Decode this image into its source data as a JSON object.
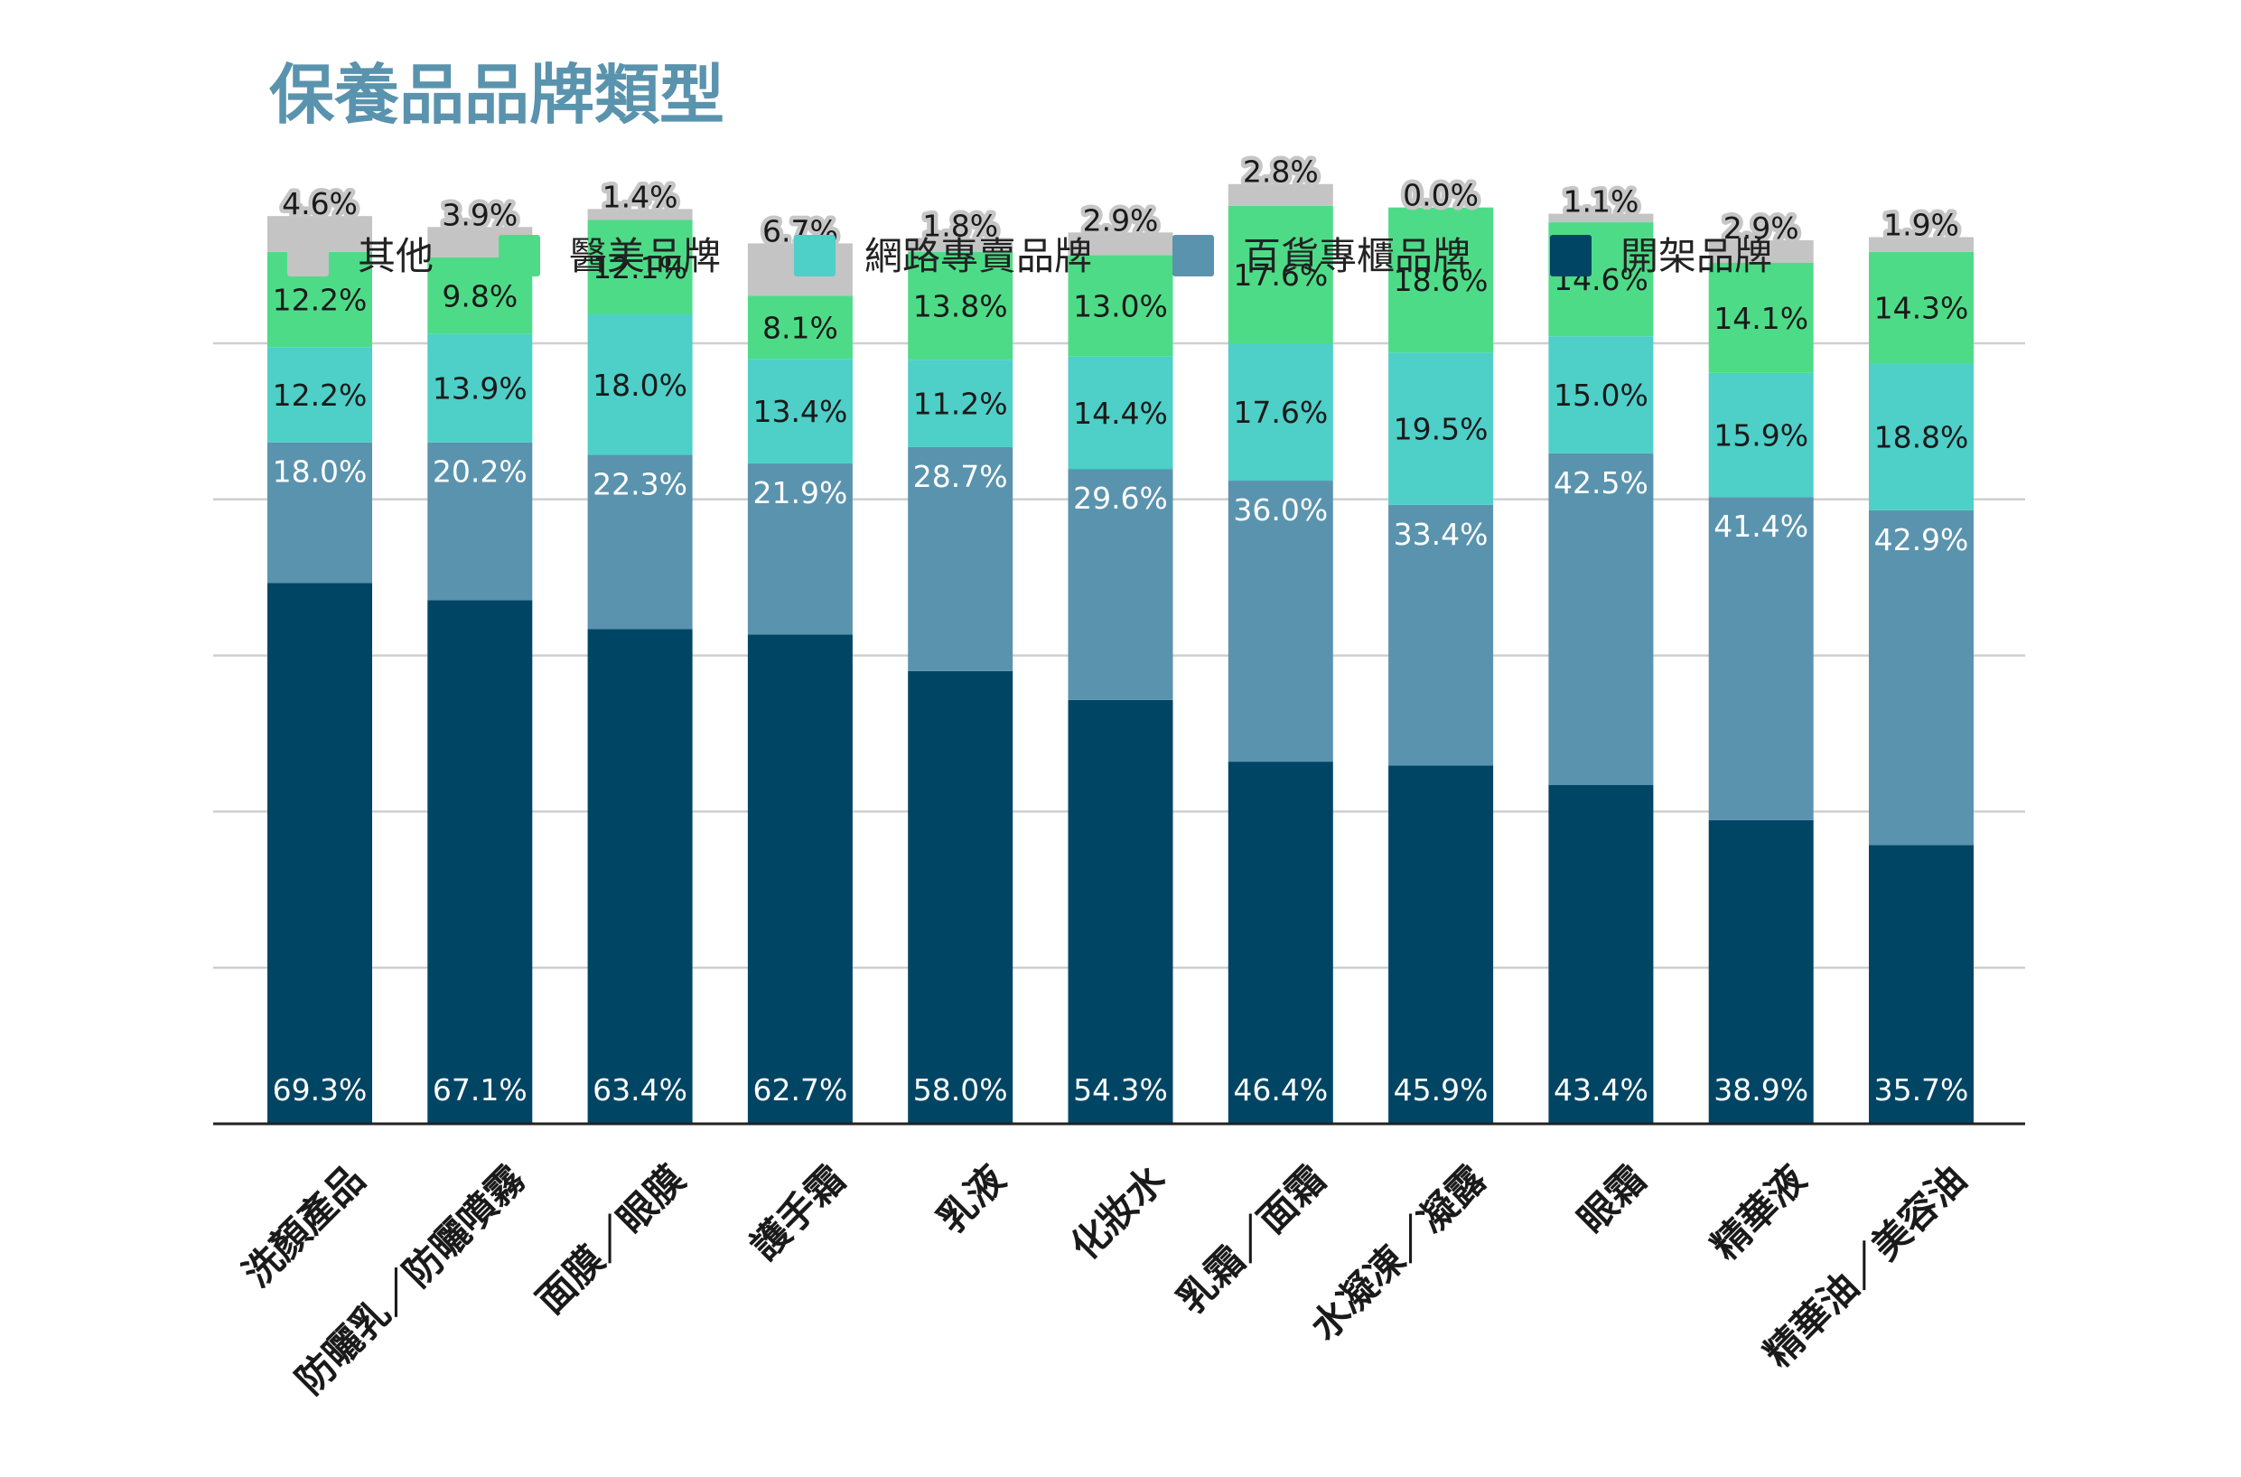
{
  "chart_data": {
    "type": "bar",
    "stacked": true,
    "percent_stacked": true,
    "title": "保養品品牌類型",
    "categories": [
      "洗顏產品",
      "防曬乳／防曬噴霧",
      "面膜／眼膜",
      "護手霜",
      "乳液",
      "化妝水",
      "乳霜／面霜",
      "水凝凍／凝露",
      "眼霜",
      "精華液",
      "精華油／美容油"
    ],
    "series": [
      {
        "name": "開架品牌",
        "color": "#004564",
        "values": [
          69.3,
          67.1,
          63.4,
          62.7,
          58.0,
          54.3,
          46.4,
          45.9,
          43.4,
          38.9,
          35.7
        ],
        "labels": [
          "69.3%",
          "67.1%",
          "63.4%",
          "62.7%",
          "58.0%",
          "54.3%",
          "46.4%",
          "45.9%",
          "43.4%",
          "38.9%",
          "35.7%"
        ]
      },
      {
        "name": "百貨專櫃品牌",
        "color": "#5a93ae",
        "values": [
          18.0,
          20.2,
          22.3,
          21.9,
          28.7,
          29.6,
          36.0,
          33.4,
          42.5,
          41.4,
          42.9
        ],
        "labels": [
          "18.0%",
          "20.2%",
          "22.3%",
          "21.9%",
          "28.7%",
          "29.6%",
          "36.0%",
          "33.4%",
          "42.5%",
          "41.4%",
          "42.9%"
        ]
      },
      {
        "name": "網路專賣品牌",
        "color": "#4ecfc8",
        "values": [
          12.2,
          13.9,
          18.0,
          13.4,
          11.2,
          14.4,
          17.6,
          19.5,
          15.0,
          15.9,
          18.8
        ],
        "labels": [
          "12.2%",
          "13.9%",
          "18.0%",
          "13.4%",
          "11.2%",
          "14.4%",
          "17.6%",
          "19.5%",
          "15.0%",
          "15.9%",
          "18.8%"
        ]
      },
      {
        "name": "醫美品牌",
        "color": "#4edb88",
        "values": [
          12.2,
          9.8,
          12.1,
          8.1,
          13.8,
          13.0,
          17.6,
          18.6,
          14.6,
          14.1,
          14.3
        ],
        "labels": [
          "12.2%",
          "9.8%",
          "12.1%",
          "8.1%",
          "13.8%",
          "13.0%",
          "17.6%",
          "18.6%",
          "14.6%",
          "14.1%",
          "14.3%"
        ]
      },
      {
        "name": "其他",
        "color": "#c4c4c4",
        "values": [
          4.6,
          3.9,
          1.4,
          6.7,
          1.8,
          2.9,
          2.8,
          0.0,
          1.1,
          2.9,
          1.9
        ],
        "labels": [
          "4.6%",
          "3.9%",
          "1.4%",
          "6.7%",
          "1.8%",
          "2.9%",
          "2.8%",
          "0.0%",
          "1.1%",
          "2.9%",
          "1.9%"
        ]
      }
    ],
    "legend": {
      "position": "top",
      "order": [
        "其他",
        "醫美品牌",
        "網路專賣品牌",
        "百貨專櫃品牌",
        "開架品牌"
      ]
    },
    "gridlines": true,
    "xlabel": "",
    "ylabel": ""
  }
}
